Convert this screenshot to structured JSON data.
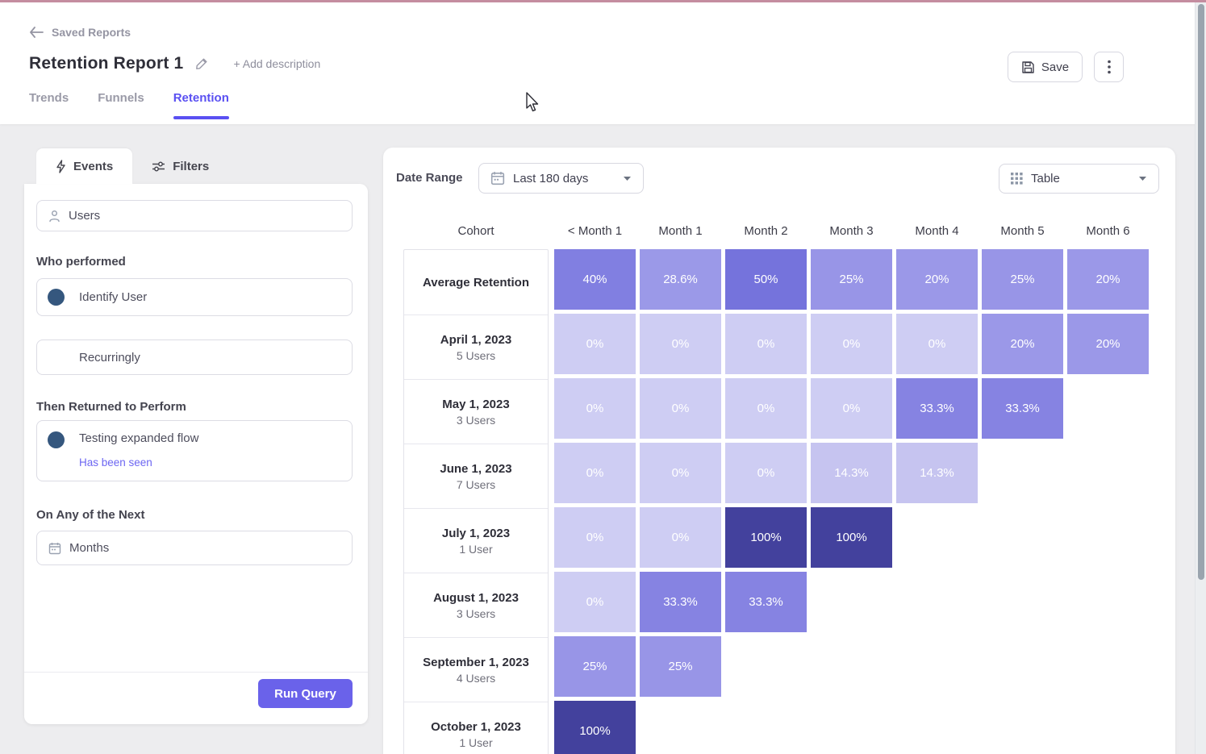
{
  "header": {
    "back_label": "Saved Reports",
    "title": "Retention Report 1",
    "add_description_label": "+ Add description",
    "save_label": "Save",
    "tabs": [
      {
        "label": "Trends",
        "active": false
      },
      {
        "label": "Funnels",
        "active": false
      },
      {
        "label": "Retention",
        "active": true
      }
    ]
  },
  "query_panel": {
    "tabs": [
      {
        "label": "Events",
        "active": true
      },
      {
        "label": "Filters",
        "active": false
      }
    ],
    "users_field": "Users",
    "who_performed_label": "Who performed",
    "identify_user_label": "Identify User",
    "recurringly_label": "Recurringly",
    "then_returned_label": "Then Returned to Perform",
    "return_event_label": "Testing expanded flow",
    "has_been_seen_label": "Has been seen",
    "on_any_label": "On Any of the Next",
    "months_field": "Months",
    "run_query_label": "Run Query"
  },
  "report": {
    "date_range_label": "Date Range",
    "date_range_value": "Last 180 days",
    "view_selector_value": "Table"
  },
  "chart_data": {
    "type": "heatmap",
    "value_format": "percent",
    "columns": [
      "Cohort",
      "< Month 1",
      "Month 1",
      "Month 2",
      "Month 3",
      "Month 4",
      "Month 5",
      "Month 6"
    ],
    "rows": [
      {
        "cohort": "Average Retention",
        "subtitle": "",
        "values": [
          40,
          28.6,
          50,
          25,
          20,
          25,
          20
        ]
      },
      {
        "cohort": "April 1, 2023",
        "subtitle": "5 Users",
        "values": [
          0,
          0,
          0,
          0,
          0,
          20,
          20
        ]
      },
      {
        "cohort": "May 1, 2023",
        "subtitle": "3 Users",
        "values": [
          0,
          0,
          0,
          0,
          33.3,
          33.3
        ]
      },
      {
        "cohort": "June 1, 2023",
        "subtitle": "7 Users",
        "values": [
          0,
          0,
          0,
          14.3,
          14.3
        ]
      },
      {
        "cohort": "July 1, 2023",
        "subtitle": "1 User",
        "values": [
          0,
          0,
          100,
          100
        ]
      },
      {
        "cohort": "August 1, 2023",
        "subtitle": "3 Users",
        "values": [
          0,
          33.3,
          33.3
        ]
      },
      {
        "cohort": "September 1, 2023",
        "subtitle": "4 Users",
        "values": [
          25,
          25
        ]
      },
      {
        "cohort": "October 1, 2023",
        "subtitle": "1 User",
        "values": [
          100
        ]
      }
    ],
    "color_scale": {
      "0": "#cecdf3",
      "14.3": "#c6c4f0",
      "20": "#9b98e8",
      "25": "#9895e7",
      "28.6": "#9b99e8",
      "33.3": "#8683e2",
      "40": "#817fe1",
      "50": "#7573dc",
      "100": "#43419d"
    }
  },
  "colors": {
    "accent": "#5a50f2",
    "run_query_button": "#6a62ea",
    "link": "#6c66f2",
    "event_dot": "#35577e",
    "top_bar": "#c48da0",
    "scrollbar_thumb": "#9aa4ae"
  }
}
